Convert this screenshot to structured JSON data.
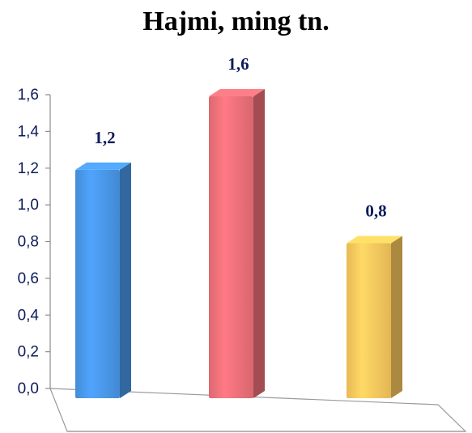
{
  "chart_data": {
    "type": "bar",
    "title": "Hajmi, ming tn.",
    "categories": [
      "",
      "",
      ""
    ],
    "values": [
      1.2,
      1.6,
      0.8
    ],
    "value_labels": [
      "1,2",
      "1,6",
      "0,8"
    ],
    "ylim": [
      0,
      1.6
    ],
    "y_ticks": [
      "0,0",
      "0,2",
      "0,4",
      "0,6",
      "0,8",
      "1,0",
      "1,2",
      "1,4",
      "1,6"
    ],
    "bar_colors": [
      "#4a98ea",
      "#f0717a",
      "#fcc95e"
    ],
    "grid": false,
    "style": "3d-column"
  }
}
